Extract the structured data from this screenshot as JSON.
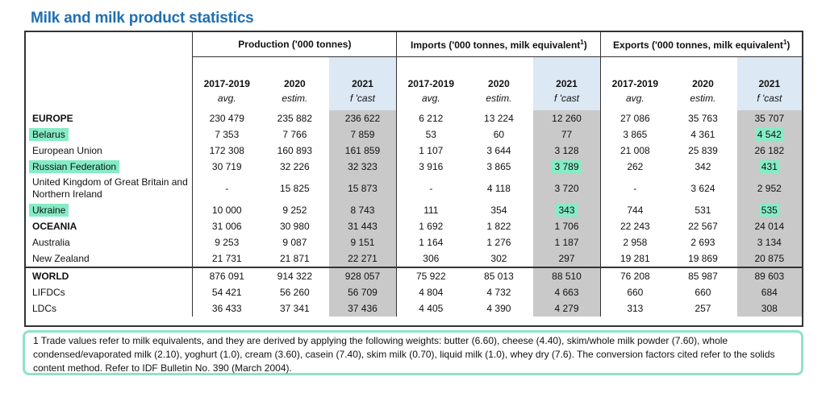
{
  "title": "Milk and milk product statistics",
  "groups": [
    {
      "label": "Production ('000 tonnes)"
    },
    {
      "label": "Imports ('000 tonnes, milk equivalent",
      "sup": "1",
      "close": ")"
    },
    {
      "label": "Exports ('000 tonnes, milk equivalent",
      "sup": "1",
      "close": ")"
    }
  ],
  "periods": [
    "2017-2019",
    "2020",
    "2021"
  ],
  "subheads": [
    "avg.",
    "estim.",
    "f 'cast"
  ],
  "rows": [
    {
      "label": "EUROPE",
      "region": true,
      "values": [
        "230 479",
        "235 882",
        "236 622",
        "6 212",
        "13 224",
        "12 260",
        "27 086",
        "35 763",
        "35 707"
      ]
    },
    {
      "label": "Belarus",
      "values": [
        "7 353",
        "7 766",
        "7 859",
        "53",
        "60",
        "77",
        "3 865",
        "4 361",
        "4 542"
      ]
    },
    {
      "label": "European Union",
      "values": [
        "172 308",
        "160 893",
        "161 859",
        "1 107",
        "3 644",
        "3 128",
        "21 008",
        "25 839",
        "26 182"
      ]
    },
    {
      "label": "Russian Federation",
      "values": [
        "30 719",
        "32 226",
        "32 323",
        "3 916",
        "3 865",
        "3 789",
        "262",
        "342",
        "431"
      ]
    },
    {
      "label": "United Kingdom of Great Britain and Northern Ireland",
      "tall": true,
      "values": [
        "-",
        "15 825",
        "15 873",
        "-",
        "4 118",
        "3 720",
        "-",
        "3 624",
        "2 952"
      ]
    },
    {
      "label": "Ukraine",
      "values": [
        "10 000",
        "9 252",
        "8 743",
        "111",
        "354",
        "343",
        "744",
        "531",
        "535"
      ]
    },
    {
      "label": "OCEANIA",
      "region": true,
      "values": [
        "31 006",
        "30 980",
        "31 443",
        "1 692",
        "1 822",
        "1 706",
        "22 243",
        "22 567",
        "24 014"
      ]
    },
    {
      "label": "Australia",
      "values": [
        "9 253",
        "9 087",
        "9 151",
        "1 164",
        "1 276",
        "1 187",
        "2 958",
        "2 693",
        "3 134"
      ]
    },
    {
      "label": "New Zealand",
      "values": [
        "21 731",
        "21 871",
        "22 271",
        "306",
        "302",
        "297",
        "19 281",
        "19 869",
        "20 875"
      ]
    },
    {
      "label": "WORLD",
      "region": true,
      "topline": true,
      "values": [
        "876 091",
        "914 322",
        "928 057",
        "75 922",
        "85 013",
        "88 510",
        "76 208",
        "85 987",
        "89 603"
      ]
    },
    {
      "label": "LIFDCs",
      "values": [
        "54 421",
        "56 260",
        "56 709",
        "4 804",
        "4 732",
        "4 663",
        "660",
        "660",
        "684"
      ]
    },
    {
      "label": "LDCs",
      "values": [
        "36 433",
        "37 341",
        "37 436",
        "4 405",
        "4 390",
        "4 279",
        "313",
        "257",
        "308"
      ]
    }
  ],
  "footnote": "1 Trade values refer to milk equivalents, and they are derived by applying the following weights: butter (6.60), cheese (4.40), skim/whole milk powder (7.60), whole condensed/evaporated milk (2.10), yoghurt (1.0), cream (3.60), casein (7.40), skim milk (0.70), liquid milk (1.0), whey dry (7.6). The conversion factors cited refer to the solids content method. Refer to IDF Bulletin No. 390 (March 2004).",
  "highlight_color": "#86ecc6",
  "title_color": "#1f6fb2"
}
